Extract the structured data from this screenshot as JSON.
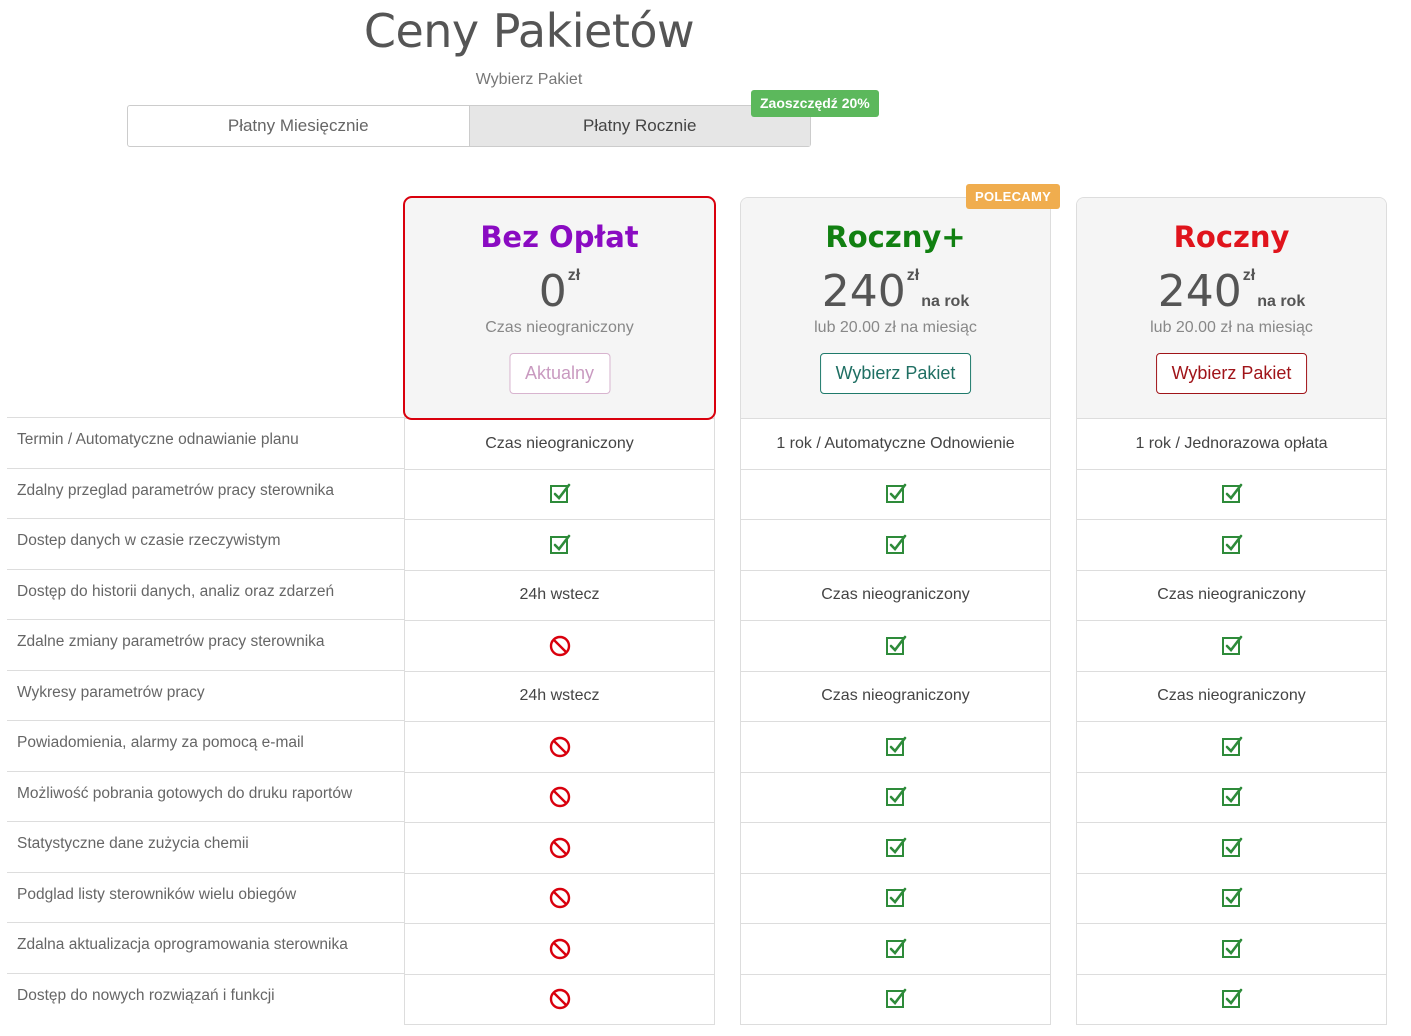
{
  "header": {
    "title": "Ceny Pakietów",
    "subtitle": "Wybierz Pakiet"
  },
  "billing_toggle": {
    "monthly_label": "Płatny Miesięcznie",
    "yearly_label": "Płatny Rocznie",
    "selected": "yearly",
    "save_badge": "Zaoszczędź 20%"
  },
  "colors": {
    "free": "#8a0bc2",
    "roczny_plus": "#118011",
    "roczny": "#e0141c",
    "check": "#2e8b3a",
    "no": "#d9000d",
    "current_border": "#d9000d"
  },
  "features": [
    "Termin / Automatyczne odnawianie planu",
    "Zdalny przeglad parametrów pracy sterownika",
    "Dostep danych w czasie rzeczywistym",
    "Dostęp do historii danych, analiz oraz zdarzeń",
    "Zdalne zmiany parametrów pracy sterownika",
    "Wykresy parametrów pracy",
    "Powiadomienia, alarmy za pomocą e-mail",
    "Możliwość pobrania gotowych do druku raportów",
    "Statystyczne dane zużycia chemii",
    "Podglad listy sterowników wielu obiegów",
    "Zdalna aktualizacja oprogramowania sterownika",
    "Dostęp do nowych rozwiązań i funkcji"
  ],
  "plans": [
    {
      "name": "Bez Opłat",
      "price": "0",
      "currency": "zł",
      "period": "",
      "sub": "Czas nieograniczony",
      "button": "Aktualny",
      "current": true,
      "badge": "",
      "cells": [
        {
          "type": "text",
          "value": "Czas nieograniczony"
        },
        {
          "type": "check"
        },
        {
          "type": "check"
        },
        {
          "type": "text",
          "value": "24h wstecz"
        },
        {
          "type": "no"
        },
        {
          "type": "text",
          "value": "24h wstecz"
        },
        {
          "type": "no"
        },
        {
          "type": "no"
        },
        {
          "type": "no"
        },
        {
          "type": "no"
        },
        {
          "type": "no"
        },
        {
          "type": "no"
        }
      ]
    },
    {
      "name": "Roczny+",
      "price": "240",
      "currency": "zł",
      "period": "na rok",
      "sub": "lub 20.00 zł na miesiąc",
      "button": "Wybierz Pakiet",
      "current": false,
      "badge": "POLECAMY",
      "cells": [
        {
          "type": "text",
          "value": "1 rok / Automatyczne Odnowienie"
        },
        {
          "type": "check"
        },
        {
          "type": "check"
        },
        {
          "type": "text",
          "value": "Czas nieograniczony"
        },
        {
          "type": "check"
        },
        {
          "type": "text",
          "value": "Czas nieograniczony"
        },
        {
          "type": "check"
        },
        {
          "type": "check"
        },
        {
          "type": "check"
        },
        {
          "type": "check"
        },
        {
          "type": "check"
        },
        {
          "type": "check"
        }
      ]
    },
    {
      "name": "Roczny",
      "price": "240",
      "currency": "zł",
      "period": "na rok",
      "sub": "lub 20.00 zł na miesiąc",
      "button": "Wybierz Pakiet",
      "current": false,
      "badge": "",
      "cells": [
        {
          "type": "text",
          "value": "1 rok / Jednorazowa opłata"
        },
        {
          "type": "check"
        },
        {
          "type": "check"
        },
        {
          "type": "text",
          "value": "Czas nieograniczony"
        },
        {
          "type": "check"
        },
        {
          "type": "text",
          "value": "Czas nieograniczony"
        },
        {
          "type": "check"
        },
        {
          "type": "check"
        },
        {
          "type": "check"
        },
        {
          "type": "check"
        },
        {
          "type": "check"
        },
        {
          "type": "check"
        }
      ]
    }
  ]
}
